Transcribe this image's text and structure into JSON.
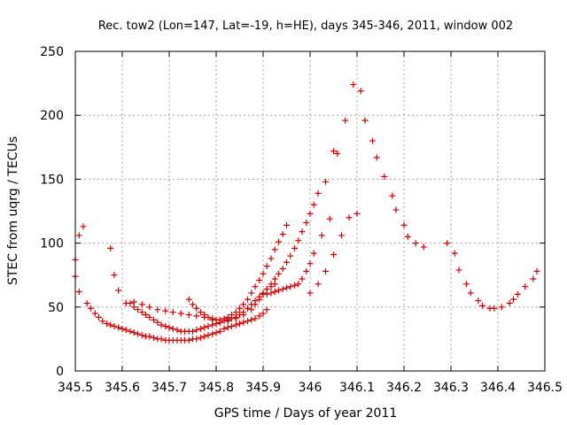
{
  "chart_data": {
    "type": "scatter",
    "title": "Rec. tow2 (Lon=147, Lat=-19, h=HE), days 345-346, 2011, window 002",
    "xlabel": "GPS time / Days of year 2011",
    "ylabel": "STEC from uqrg / TECUs",
    "xlim": [
      345.5,
      346.5
    ],
    "ylim": [
      0,
      250
    ],
    "xticks": [
      345.5,
      345.6,
      345.7,
      345.8,
      345.9,
      346,
      346.1,
      346.2,
      346.3,
      346.4,
      346.5
    ],
    "xtick_labels": [
      "345.5",
      "345.6",
      "345.7",
      "345.8",
      "345.9",
      "346",
      "346.1",
      "346.2",
      "346.3",
      "346.4",
      "346.5"
    ],
    "yticks": [
      0,
      50,
      100,
      150,
      200,
      250
    ],
    "ytick_labels": [
      "0",
      "50",
      "100",
      "150",
      "200",
      "250"
    ],
    "grid": true,
    "marker": "+",
    "color": "#cc0000",
    "series": [
      {
        "points": [
          [
            345.5,
            87
          ],
          [
            345.5,
            74
          ],
          [
            345.508,
            106
          ],
          [
            345.517,
            113
          ],
          [
            345.508,
            62
          ],
          [
            345.525,
            53
          ],
          [
            345.533,
            49
          ],
          [
            345.542,
            45
          ],
          [
            345.55,
            42
          ],
          [
            345.558,
            39
          ],
          [
            345.567,
            37
          ],
          [
            345.575,
            36
          ],
          [
            345.583,
            35
          ],
          [
            345.592,
            34
          ],
          [
            345.6,
            33
          ],
          [
            345.608,
            32
          ],
          [
            345.617,
            31
          ],
          [
            345.625,
            30
          ],
          [
            345.633,
            29
          ],
          [
            345.642,
            28
          ],
          [
            345.65,
            27
          ],
          [
            345.658,
            27
          ],
          [
            345.667,
            26
          ],
          [
            345.675,
            25
          ],
          [
            345.683,
            25
          ],
          [
            345.692,
            24
          ],
          [
            345.7,
            24
          ],
          [
            345.708,
            24
          ],
          [
            345.717,
            24
          ],
          [
            345.725,
            24
          ],
          [
            345.733,
            24
          ],
          [
            345.742,
            24
          ],
          [
            345.75,
            25
          ],
          [
            345.758,
            25
          ],
          [
            345.767,
            26
          ],
          [
            345.775,
            27
          ],
          [
            345.783,
            28
          ],
          [
            345.792,
            29
          ],
          [
            345.8,
            30
          ],
          [
            345.808,
            31
          ],
          [
            345.817,
            33
          ],
          [
            345.825,
            34
          ],
          [
            345.833,
            35
          ],
          [
            345.842,
            36
          ],
          [
            345.85,
            37
          ],
          [
            345.858,
            38
          ],
          [
            345.867,
            39
          ],
          [
            345.875,
            40
          ],
          [
            345.883,
            41
          ],
          [
            345.892,
            43
          ],
          [
            345.9,
            45
          ],
          [
            345.908,
            48
          ]
        ]
      },
      {
        "points": [
          [
            345.575,
            96
          ],
          [
            345.583,
            75
          ],
          [
            345.592,
            63
          ],
          [
            345.608,
            53
          ],
          [
            345.617,
            53
          ],
          [
            345.625,
            50
          ],
          [
            345.633,
            48
          ],
          [
            345.642,
            46
          ],
          [
            345.65,
            44
          ],
          [
            345.658,
            42
          ],
          [
            345.667,
            40
          ],
          [
            345.675,
            38
          ],
          [
            345.683,
            36
          ],
          [
            345.692,
            35
          ],
          [
            345.7,
            34
          ],
          [
            345.708,
            33
          ],
          [
            345.717,
            32
          ],
          [
            345.725,
            31
          ],
          [
            345.733,
            31
          ],
          [
            345.742,
            31
          ],
          [
            345.75,
            31
          ],
          [
            345.758,
            32
          ],
          [
            345.767,
            33
          ],
          [
            345.775,
            34
          ],
          [
            345.783,
            35
          ],
          [
            345.792,
            36
          ],
          [
            345.8,
            37
          ],
          [
            345.808,
            38
          ],
          [
            345.817,
            39
          ],
          [
            345.825,
            40
          ],
          [
            345.833,
            41
          ],
          [
            345.842,
            42
          ],
          [
            345.85,
            44
          ],
          [
            345.858,
            46
          ],
          [
            345.867,
            49
          ],
          [
            345.875,
            52
          ],
          [
            345.883,
            55
          ],
          [
            345.892,
            58
          ],
          [
            345.9,
            61
          ],
          [
            345.908,
            64
          ],
          [
            345.917,
            66
          ],
          [
            345.925,
            68
          ]
        ]
      },
      {
        "points": [
          [
            345.625,
            54
          ],
          [
            345.642,
            52
          ],
          [
            345.658,
            50
          ],
          [
            345.675,
            48
          ],
          [
            345.692,
            47
          ],
          [
            345.708,
            46
          ],
          [
            345.725,
            45
          ],
          [
            345.742,
            44
          ],
          [
            345.758,
            43
          ],
          [
            345.775,
            42
          ],
          [
            345.792,
            40
          ],
          [
            345.808,
            38
          ],
          [
            345.825,
            39
          ],
          [
            345.842,
            41
          ],
          [
            345.858,
            44
          ],
          [
            345.875,
            48
          ],
          [
            345.883,
            52
          ],
          [
            345.892,
            56
          ],
          [
            345.9,
            60
          ],
          [
            345.908,
            64
          ],
          [
            345.917,
            68
          ],
          [
            345.925,
            72
          ],
          [
            345.933,
            76
          ],
          [
            345.942,
            80
          ],
          [
            345.95,
            85
          ],
          [
            345.958,
            90
          ],
          [
            345.967,
            96
          ],
          [
            345.975,
            102
          ],
          [
            345.983,
            109
          ],
          [
            345.992,
            116
          ],
          [
            346.0,
            123
          ],
          [
            346.008,
            130
          ],
          [
            346.017,
            139
          ],
          [
            346.033,
            148
          ]
        ]
      },
      {
        "points": [
          [
            345.742,
            56
          ],
          [
            345.75,
            52
          ],
          [
            345.758,
            49
          ],
          [
            345.767,
            46
          ],
          [
            345.775,
            44
          ],
          [
            345.783,
            42
          ],
          [
            345.792,
            41
          ],
          [
            345.8,
            40
          ],
          [
            345.808,
            40
          ],
          [
            345.817,
            41
          ],
          [
            345.825,
            42
          ],
          [
            345.833,
            44
          ],
          [
            345.842,
            46
          ],
          [
            345.85,
            49
          ],
          [
            345.858,
            52
          ],
          [
            345.867,
            56
          ],
          [
            345.875,
            61
          ],
          [
            345.883,
            66
          ],
          [
            345.892,
            71
          ],
          [
            345.9,
            76
          ],
          [
            345.908,
            82
          ],
          [
            345.917,
            88
          ],
          [
            345.925,
            95
          ],
          [
            345.933,
            101
          ],
          [
            345.942,
            107
          ],
          [
            345.95,
            114
          ]
        ]
      },
      {
        "points": [
          [
            345.9,
            60
          ],
          [
            345.908,
            60
          ],
          [
            345.917,
            61
          ],
          [
            345.925,
            62
          ],
          [
            345.933,
            63
          ],
          [
            345.942,
            64
          ],
          [
            345.95,
            65
          ],
          [
            345.958,
            66
          ],
          [
            345.967,
            67
          ],
          [
            345.975,
            68
          ],
          [
            345.983,
            72
          ],
          [
            345.992,
            78
          ],
          [
            346.0,
            84
          ],
          [
            346.008,
            92
          ],
          [
            346.025,
            106
          ],
          [
            346.042,
            119
          ],
          [
            346.05,
            172
          ],
          [
            346.058,
            170
          ],
          [
            346.075,
            196
          ],
          [
            346.092,
            224
          ],
          [
            346.108,
            219
          ],
          [
            346.117,
            196
          ],
          [
            346.133,
            180
          ],
          [
            346.142,
            167
          ],
          [
            346.158,
            152
          ],
          [
            346.175,
            137
          ],
          [
            346.183,
            126
          ],
          [
            346.2,
            114
          ],
          [
            346.208,
            105
          ],
          [
            346.225,
            100
          ],
          [
            346.242,
            97
          ],
          [
            346.292,
            100
          ],
          [
            346.308,
            92
          ],
          [
            346.317,
            79
          ],
          [
            346.333,
            68
          ],
          [
            346.342,
            61
          ],
          [
            346.358,
            55
          ],
          [
            346.367,
            51
          ],
          [
            346.383,
            49
          ],
          [
            346.392,
            49
          ],
          [
            346.408,
            50
          ],
          [
            346.425,
            53
          ],
          [
            346.433,
            56
          ],
          [
            346.442,
            60
          ],
          [
            346.458,
            66
          ],
          [
            346.475,
            72
          ],
          [
            346.483,
            78
          ]
        ]
      },
      {
        "points": [
          [
            346.0,
            61
          ],
          [
            346.017,
            68
          ],
          [
            346.033,
            78
          ],
          [
            346.05,
            91
          ],
          [
            346.067,
            106
          ],
          [
            346.083,
            120
          ],
          [
            346.1,
            123
          ]
        ]
      }
    ]
  }
}
